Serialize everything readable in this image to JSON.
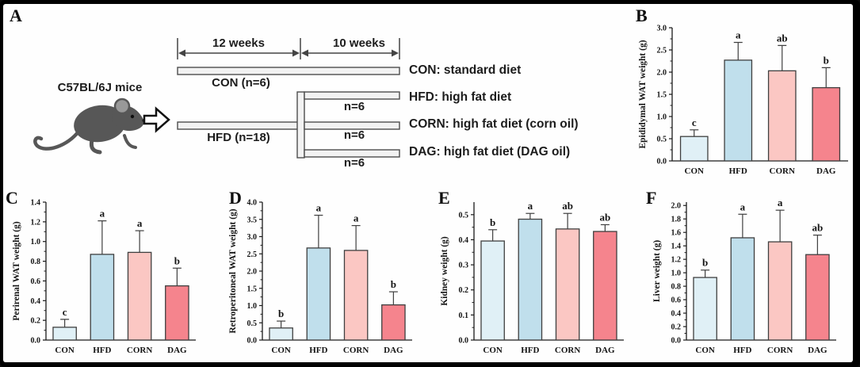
{
  "panel_letters": [
    "A",
    "B",
    "C",
    "D",
    "E",
    "F"
  ],
  "colors": {
    "CON": "#e0f0f6",
    "HFD": "#c0dfec",
    "CORN": "#fbc7c3",
    "DAG": "#f5848d",
    "mouse": "#575757",
    "diagram_bar_fill": "#f2f2f2",
    "diagram_bar_stroke": "#4d4d4d",
    "axis": "#1a1a1a"
  },
  "panelA": {
    "subject": "C57BL/6J mice",
    "phase1": "12 weeks",
    "phase2": "10 weeks",
    "arm_con": "CON (n=6)",
    "arm_hfd": "HFD (n=18)",
    "branch_ns": [
      "n=6",
      "n=6",
      "n=6"
    ],
    "legend": [
      "CON: standard diet",
      "HFD: high fat diet",
      "CORN: high fat diet (corn oil)",
      "DAG: high fat diet (DAG oil)"
    ]
  },
  "chart_data": [
    {
      "panel_label": "B",
      "type": "bar",
      "ylabel": "Epididymal WAT weight (g)",
      "categories": [
        "CON",
        "HFD",
        "CORN",
        "DAG"
      ],
      "values": [
        0.55,
        2.27,
        2.03,
        1.65
      ],
      "errors": [
        0.15,
        0.4,
        0.57,
        0.45
      ],
      "sig_letters": [
        "c",
        "a",
        "ab",
        "b"
      ],
      "ylim": [
        0,
        3.0
      ],
      "ytick_step": 0.5,
      "tick_decimals": 1
    },
    {
      "panel_label": "C",
      "type": "bar",
      "ylabel": "Perirenal WAT weight (g)",
      "categories": [
        "CON",
        "HFD",
        "CORN",
        "DAG"
      ],
      "values": [
        0.13,
        0.87,
        0.89,
        0.55
      ],
      "errors": [
        0.08,
        0.34,
        0.22,
        0.18
      ],
      "sig_letters": [
        "c",
        "a",
        "a",
        "b"
      ],
      "ylim": [
        0,
        1.4
      ],
      "ytick_step": 0.2,
      "tick_decimals": 1
    },
    {
      "panel_label": "D",
      "type": "bar",
      "ylabel": "Retroperitoneal WAT weight (g)",
      "categories": [
        "CON",
        "HFD",
        "CORN",
        "DAG"
      ],
      "values": [
        0.35,
        2.67,
        2.6,
        1.02
      ],
      "errors": [
        0.2,
        0.95,
        0.72,
        0.38
      ],
      "sig_letters": [
        "b",
        "a",
        "a",
        "b"
      ],
      "ylim": [
        0,
        4.0
      ],
      "ytick_step": 0.5,
      "tick_decimals": 1
    },
    {
      "panel_label": "E",
      "type": "bar",
      "ylabel": "Kidney weight (g)",
      "categories": [
        "CON",
        "HFD",
        "CORN",
        "DAG"
      ],
      "values": [
        0.395,
        0.482,
        0.443,
        0.433
      ],
      "errors": [
        0.045,
        0.023,
        0.062,
        0.027
      ],
      "sig_letters": [
        "b",
        "a",
        "ab",
        "ab"
      ],
      "ylim": [
        0,
        0.55
      ],
      "ytick_step": 0.1,
      "tick_decimals": 1
    },
    {
      "panel_label": "F",
      "type": "bar",
      "ylabel": "Liver weight (g)",
      "categories": [
        "CON",
        "HFD",
        "CORN",
        "DAG"
      ],
      "values": [
        0.93,
        1.52,
        1.46,
        1.27
      ],
      "errors": [
        0.11,
        0.35,
        0.47,
        0.29
      ],
      "sig_letters": [
        "b",
        "a",
        "a",
        "ab"
      ],
      "ylim": [
        0,
        2.05
      ],
      "ytick_step": 0.2,
      "tick_decimals": 1
    }
  ]
}
